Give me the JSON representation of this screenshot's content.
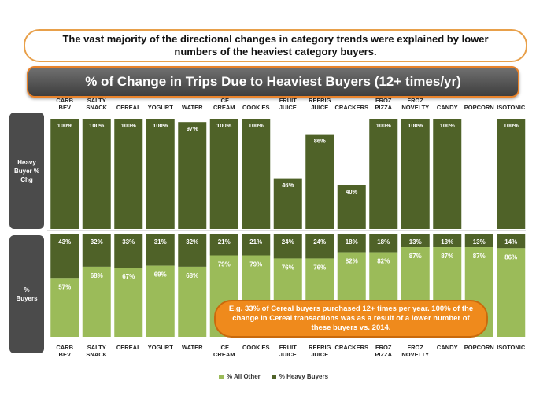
{
  "header": {
    "callout": "The vast majority of the directional changes in category trends were explained by lower numbers of the heaviest category buyers.",
    "title": "% of Change in Trips Due to Heaviest Buyers (12+ times/yr)"
  },
  "row_labels": {
    "top": "Heavy Buyer % Chg",
    "bottom": "% Buyers"
  },
  "annotation": "E.g. 33% of Cereal buyers purchased 12+ times per year.  100% of the change in Cereal transactions was as a result of a lower number of these buyers vs. 2014.",
  "colors": {
    "heavy": "#4f6228",
    "all_other": "#9bbb59",
    "label_box": "#4b4b4b",
    "accent": "#ef8a1c"
  },
  "chart_data": [
    {
      "type": "bar",
      "title": "Heavy Buyer % Chg",
      "categories": [
        "CARB BEV",
        "SALTY SNACK",
        "CEREAL",
        "YOGURT",
        "WATER",
        "ICE CREAM",
        "COOKIES",
        "FRUIT JUICE",
        "REFRIG JUICE",
        "CRACKERS",
        "FROZ PIZZA",
        "FROZ NOVELTY",
        "CANDY",
        "POPCORN",
        "ISOTONIC"
      ],
      "values": [
        100,
        100,
        100,
        100,
        97,
        100,
        100,
        46,
        86,
        40,
        100,
        100,
        100,
        null,
        100
      ],
      "labels": [
        "100%",
        "100%",
        "100%",
        "100%",
        "97%",
        "100%",
        "100%",
        "46%",
        "86%",
        "40%",
        "100%",
        "100%",
        "100%",
        "",
        "100%"
      ],
      "ylim": [
        0,
        100
      ]
    },
    {
      "type": "bar",
      "stacked": true,
      "title": "% Buyers",
      "categories": [
        "CARB BEV",
        "SALTY SNACK",
        "CEREAL",
        "YOGURT",
        "WATER",
        "ICE CREAM",
        "COOKIES",
        "FRUIT JUICE",
        "REFRIG JUICE",
        "CRACKERS",
        "FROZ PIZZA",
        "FROZ NOVELTY",
        "CANDY",
        "POPCORN",
        "ISOTONIC"
      ],
      "series": [
        {
          "name": "% All Other",
          "values": [
            57,
            68,
            67,
            69,
            68,
            79,
            79,
            76,
            76,
            82,
            82,
            87,
            87,
            87,
            86
          ],
          "labels": [
            "57%",
            "68%",
            "67%",
            "69%",
            "68%",
            "79%",
            "79%",
            "76%",
            "76%",
            "82%",
            "82%",
            "87%",
            "87%",
            "87%",
            "86%"
          ]
        },
        {
          "name": "% Heavy Buyers",
          "values": [
            43,
            32,
            33,
            31,
            32,
            21,
            21,
            24,
            24,
            18,
            18,
            13,
            13,
            13,
            14
          ],
          "labels": [
            "43%",
            "32%",
            "33%",
            "31%",
            "32%",
            "21%",
            "21%",
            "24%",
            "24%",
            "18%",
            "18%",
            "13%",
            "13%",
            "13%",
            "14%"
          ]
        }
      ],
      "ylim": [
        0,
        100
      ],
      "legend": "bottom"
    }
  ]
}
